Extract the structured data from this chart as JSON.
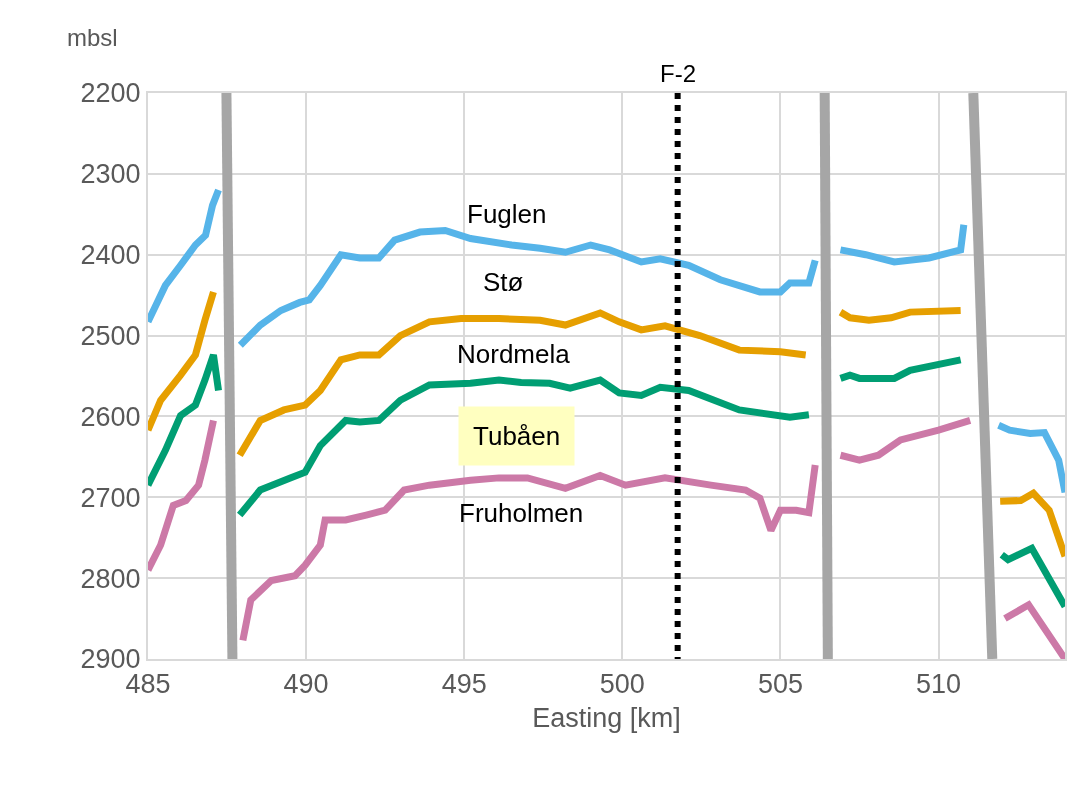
{
  "chart_data": {
    "type": "line",
    "xlabel": "Easting [km]",
    "ylabel": "mbsl",
    "xlim": [
      485,
      514
    ],
    "xticks": [
      485,
      490,
      495,
      500,
      505,
      510
    ],
    "ylim": [
      2900,
      2200
    ],
    "yticks": [
      2200,
      2300,
      2400,
      2500,
      2600,
      2700,
      2800,
      2900
    ],
    "grid": true,
    "line_style": "solid",
    "series": [
      {
        "color": "#56b4e9",
        "x": [
          485,
          485.55,
          486.03,
          486.5,
          486.82,
          487.04,
          487.23,
          487.6,
          487.92,
          488.55,
          489.2,
          489.8,
          490.1,
          490.45,
          491.1,
          491.7,
          492.3,
          492.8,
          493.6,
          494.4,
          495.2,
          496.5,
          497.4,
          498.2,
          499,
          499.6,
          500.6,
          501.2,
          502.1,
          503.1,
          504.35,
          505,
          505.3,
          505.9,
          506.1,
          506.5,
          506.9,
          507.7,
          508.6,
          509.7,
          510.7,
          510.8,
          511.4,
          511.9,
          512.25,
          512.9,
          513.35,
          513.8,
          514
        ],
        "values": [
          2483,
          2438,
          2413,
          2388,
          2376,
          2339,
          2320,
          null,
          2512,
          2487,
          2469,
          2459,
          2456,
          2438,
          2400,
          2404,
          2404,
          2382,
          2372,
          2370,
          2380,
          2388,
          2392,
          2397,
          2388,
          2394,
          2409,
          2405,
          2413,
          2431,
          2446,
          2446,
          2435,
          2435,
          2407,
          null,
          2394,
          2400,
          2409,
          2404,
          2394,
          2363,
          null,
          2611,
          2617,
          2621,
          2620,
          2654,
          2694
        ]
      },
      {
        "color": "#e69f00",
        "x": [
          485,
          485.4,
          486.03,
          486.5,
          486.8,
          487.07,
          487.6,
          487.9,
          488.55,
          489.3,
          489.97,
          490.45,
          491.1,
          491.7,
          492.3,
          492.98,
          493.9,
          494.9,
          496.1,
          497.4,
          498.2,
          499.3,
          499.9,
          500.6,
          501.35,
          502.45,
          503.7,
          505,
          505.8,
          506.5,
          506.9,
          507.2,
          507.8,
          508.5,
          509.1,
          510.7,
          511.4,
          511.95,
          512.6,
          513,
          513.5,
          514
        ],
        "values": [
          2617,
          2580,
          2549,
          2524,
          2481,
          2446,
          null,
          2648,
          2605,
          2592,
          2586,
          2568,
          2530,
          2524,
          2524,
          2500,
          2483,
          2479,
          2479,
          2481,
          2487,
          2472,
          2483,
          2493,
          2488,
          2500,
          2518,
          2520,
          2524,
          null,
          2471,
          2478,
          2481,
          2478,
          2471,
          2469,
          null,
          2705,
          2704,
          2695,
          2716,
          2773
        ]
      },
      {
        "color": "#009e73",
        "x": [
          485,
          485.55,
          486.03,
          486.5,
          486.8,
          487.07,
          487.23,
          487.6,
          487.9,
          488.55,
          489.5,
          489.97,
          490.45,
          491.25,
          491.7,
          492.3,
          492.98,
          493.9,
          495.2,
          496.1,
          496.8,
          497.7,
          498.35,
          499.3,
          499.9,
          500.6,
          501.2,
          502.1,
          503.7,
          505.3,
          505.9,
          506.5,
          506.9,
          507.2,
          507.5,
          508.6,
          509.1,
          510.7,
          511.4,
          512,
          512.2,
          512.95,
          514
        ],
        "values": [
          2685,
          2642,
          2599,
          2586,
          2555,
          2524,
          2568,
          null,
          2722,
          2691,
          2676,
          2669,
          2636,
          2605,
          2607,
          2605,
          2580,
          2561,
          2559,
          2555,
          2558,
          2559,
          2565,
          2555,
          2571,
          2574,
          2564,
          2568,
          2592,
          2601,
          2598,
          null,
          2553,
          2549,
          2553,
          2553,
          2543,
          2530,
          null,
          2771,
          2777,
          2763,
          2835
        ]
      },
      {
        "color": "#cc79a7",
        "x": [
          485,
          485.4,
          485.8,
          486.2,
          486.6,
          486.8,
          487.07,
          487.6,
          488,
          488.25,
          488.9,
          489.65,
          489.97,
          490.45,
          490.6,
          491.25,
          491.9,
          492.5,
          493.1,
          493.9,
          495.2,
          496.1,
          497,
          498.2,
          499.3,
          500.1,
          501.35,
          502.8,
          503.9,
          504.35,
          504.7,
          505,
          505.5,
          505.9,
          506.1,
          506.5,
          506.9,
          507.5,
          508.1,
          508.8,
          510,
          511,
          511.5,
          512.1,
          512.85,
          514
        ],
        "values": [
          2790,
          2759,
          2710,
          2704,
          2685,
          2654,
          2605,
          null,
          2877,
          2827,
          2803,
          2797,
          2784,
          2759,
          2728,
          2728,
          2722,
          2716,
          2691,
          2685,
          2679,
          2676,
          2676,
          2689,
          2673,
          2685,
          2676,
          2685,
          2691,
          2701,
          2741,
          2716,
          2716,
          2719,
          2660,
          null,
          2648,
          2654,
          2648,
          2629,
          2617,
          2605,
          null,
          2850,
          2833,
          2900
        ]
      },
      {
        "color": "#a6a6a6",
        "x": [
          487.48,
          487.67
        ],
        "values": [
          2200,
          2900
        ]
      },
      {
        "color": "#a6a6a6",
        "x": [
          506.4,
          506.5
        ],
        "values": [
          2200,
          2900
        ]
      },
      {
        "color": "#a6a6a6",
        "x": [
          511.1,
          511.7
        ],
        "values": [
          2200,
          2900
        ]
      }
    ],
    "ref_lines": [
      {
        "axis": "x",
        "value": 501.75,
        "label": "F-2",
        "color": "#000000",
        "line_style": "dotted"
      }
    ],
    "annotations": [
      "Fuglen",
      "Stø",
      "Nordmela",
      "Tubåen",
      "Fruholmen"
    ]
  }
}
